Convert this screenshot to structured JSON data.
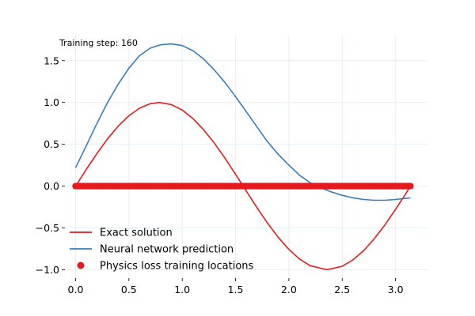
{
  "chart_data": {
    "type": "line",
    "annotation": "Training step: 160",
    "xlim": [
      -0.1,
      3.3
    ],
    "ylim": [
      -1.1,
      1.8
    ],
    "x_ticks": [
      0.0,
      0.5,
      1.0,
      1.5,
      2.0,
      2.5,
      3.0
    ],
    "x_tick_labels": [
      "0.0",
      "0.5",
      "1.0",
      "1.5",
      "2.0",
      "2.5",
      "3.0"
    ],
    "y_ticks": [
      -1.0,
      -0.5,
      0.0,
      0.5,
      1.0,
      1.5
    ],
    "y_tick_labels": [
      "−1.0",
      "−0.5",
      "0.0",
      "0.5",
      "1.0",
      "1.5"
    ],
    "grid": true,
    "legend_position": "lower-left",
    "series": [
      {
        "name": "Exact solution",
        "kind": "line",
        "color": "#e41a1c",
        "x": [
          0.0,
          0.1,
          0.2,
          0.3,
          0.4,
          0.5,
          0.6,
          0.7,
          0.785,
          0.9,
          1.0,
          1.1,
          1.2,
          1.3,
          1.4,
          1.5,
          1.571,
          1.7,
          1.8,
          1.9,
          2.0,
          2.1,
          2.2,
          2.356,
          2.5,
          2.6,
          2.7,
          2.8,
          2.9,
          3.0,
          3.1,
          3.14
        ],
        "y": [
          0.0,
          0.199,
          0.389,
          0.565,
          0.717,
          0.841,
          0.932,
          0.985,
          1.0,
          0.974,
          0.909,
          0.808,
          0.675,
          0.516,
          0.335,
          0.141,
          0.0,
          -0.256,
          -0.443,
          -0.612,
          -0.757,
          -0.872,
          -0.952,
          -1.0,
          -0.959,
          -0.883,
          -0.773,
          -0.631,
          -0.465,
          -0.279,
          -0.083,
          0.0
        ]
      },
      {
        "name": "Neural network prediction",
        "kind": "line",
        "color": "#377eb8",
        "x": [
          0.0,
          0.1,
          0.2,
          0.3,
          0.4,
          0.5,
          0.6,
          0.7,
          0.8,
          0.9,
          1.0,
          1.1,
          1.2,
          1.3,
          1.4,
          1.5,
          1.6,
          1.7,
          1.8,
          1.9,
          2.0,
          2.1,
          2.2,
          2.3,
          2.4,
          2.5,
          2.6,
          2.7,
          2.8,
          2.9,
          3.0,
          3.14
        ],
        "y": [
          0.22,
          0.48,
          0.75,
          1.0,
          1.22,
          1.41,
          1.56,
          1.65,
          1.69,
          1.7,
          1.68,
          1.62,
          1.52,
          1.39,
          1.24,
          1.07,
          0.89,
          0.71,
          0.53,
          0.38,
          0.25,
          0.13,
          0.04,
          -0.02,
          -0.07,
          -0.11,
          -0.14,
          -0.16,
          -0.17,
          -0.17,
          -0.16,
          -0.14
        ]
      },
      {
        "name": "Physics loss training locations",
        "kind": "scatter",
        "color": "#e41a1c",
        "x_range": [
          0.0,
          3.14
        ],
        "count": 160,
        "y": 0.0
      }
    ]
  }
}
